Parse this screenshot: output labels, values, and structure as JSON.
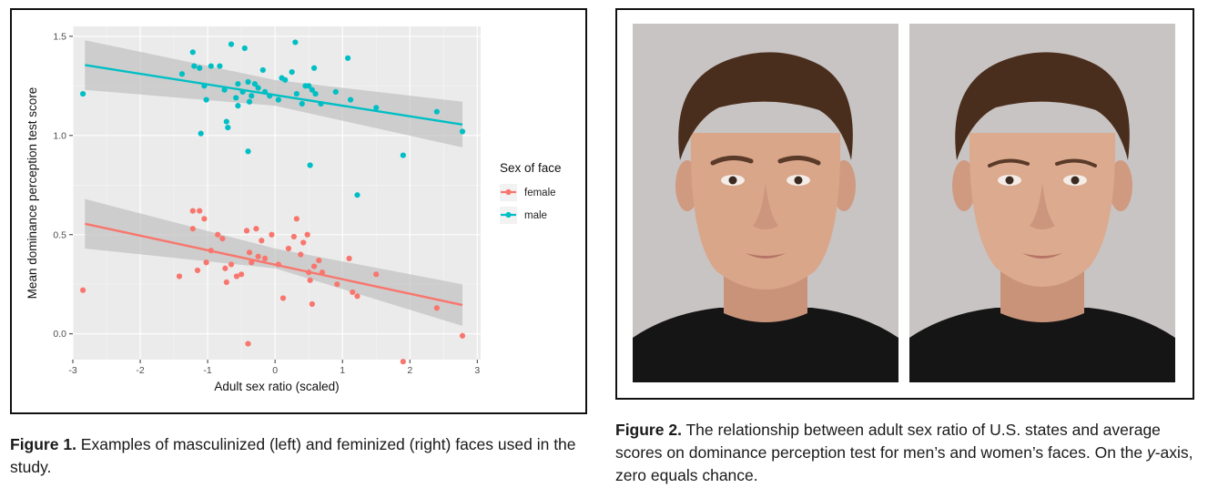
{
  "figure1_caption": {
    "label": "Figure 1.",
    "text": " Examples of masculinized (left) and feminized (right) faces used in the study."
  },
  "figure2_caption": {
    "label": "Figure 2.",
    "text_before": " The relationship between adult sex ratio of U.S. states and average scores on dominance perception test for men’s and women’s faces. On the ",
    "italic": "y",
    "text_after": "-axis, zero equals chance."
  },
  "chart_data": {
    "type": "scatter",
    "title": "",
    "xlabel": "Adult sex ratio (scaled)",
    "ylabel": "Mean dominance perception test score",
    "xlim": [
      -3.0,
      3.05
    ],
    "ylim": [
      -0.13,
      1.55
    ],
    "x_ticks": [
      "-3",
      "-2",
      "-1",
      "0",
      "1",
      "2",
      "3"
    ],
    "y_ticks": [
      "0.0",
      "0.5",
      "1.0",
      "1.5"
    ],
    "x_tick_values": [
      -3,
      -2,
      -1,
      0,
      1,
      2,
      3
    ],
    "y_tick_values": [
      0.0,
      0.5,
      1.0,
      1.5
    ],
    "grid": true,
    "legend": {
      "title": "Sex of face",
      "position": "right"
    },
    "colors": {
      "female": "#F8766D",
      "male": "#00BFC4",
      "panel_bg": "#EBEBEB",
      "ribbon": "#BDBDBD"
    },
    "series": [
      {
        "name": "female",
        "color": "#F8766D",
        "fit": {
          "x": [
            -2.82,
            2.78
          ],
          "y": [
            0.555,
            0.145
          ]
        },
        "ribbon": {
          "x": [
            -2.82,
            0.0,
            2.78
          ],
          "upper": [
            0.68,
            0.43,
            0.25
          ],
          "lower": [
            0.43,
            0.33,
            0.04
          ]
        },
        "points": [
          [
            -2.85,
            0.22
          ],
          [
            -1.42,
            0.29
          ],
          [
            -1.22,
            0.62
          ],
          [
            -1.22,
            0.53
          ],
          [
            -1.12,
            0.62
          ],
          [
            -1.05,
            0.58
          ],
          [
            -1.15,
            0.32
          ],
          [
            -1.02,
            0.36
          ],
          [
            -0.95,
            0.42
          ],
          [
            -0.85,
            0.5
          ],
          [
            -0.78,
            0.48
          ],
          [
            -0.74,
            0.33
          ],
          [
            -0.72,
            0.26
          ],
          [
            -0.65,
            0.35
          ],
          [
            -0.57,
            0.29
          ],
          [
            -0.5,
            0.3
          ],
          [
            -0.42,
            0.52
          ],
          [
            -0.38,
            0.41
          ],
          [
            -0.35,
            0.36
          ],
          [
            -0.28,
            0.53
          ],
          [
            -0.25,
            0.39
          ],
          [
            -0.2,
            0.47
          ],
          [
            -0.15,
            0.38
          ],
          [
            -0.05,
            0.5
          ],
          [
            0.05,
            0.35
          ],
          [
            0.12,
            0.18
          ],
          [
            0.2,
            0.43
          ],
          [
            0.28,
            0.49
          ],
          [
            0.32,
            0.58
          ],
          [
            0.38,
            0.4
          ],
          [
            0.42,
            0.46
          ],
          [
            0.48,
            0.5
          ],
          [
            0.5,
            0.31
          ],
          [
            0.52,
            0.27
          ],
          [
            0.55,
            0.15
          ],
          [
            0.58,
            0.34
          ],
          [
            0.65,
            0.37
          ],
          [
            0.7,
            0.31
          ],
          [
            0.92,
            0.25
          ],
          [
            1.1,
            0.38
          ],
          [
            1.15,
            0.21
          ],
          [
            1.22,
            0.19
          ],
          [
            1.5,
            0.3
          ],
          [
            1.9,
            -0.14
          ],
          [
            -0.4,
            -0.05
          ],
          [
            2.4,
            0.13
          ],
          [
            2.78,
            -0.01
          ]
        ]
      },
      {
        "name": "male",
        "color": "#00BFC4",
        "fit": {
          "x": [
            -2.82,
            2.78
          ],
          "y": [
            1.355,
            1.055
          ]
        },
        "ribbon": {
          "x": [
            -2.82,
            0.0,
            2.78
          ],
          "upper": [
            1.48,
            1.28,
            1.17
          ],
          "lower": [
            1.23,
            1.15,
            0.94
          ]
        },
        "points": [
          [
            -2.85,
            1.21
          ],
          [
            -1.38,
            1.31
          ],
          [
            -1.22,
            1.42
          ],
          [
            -1.2,
            1.35
          ],
          [
            -1.12,
            1.34
          ],
          [
            -1.05,
            1.25
          ],
          [
            -1.02,
            1.18
          ],
          [
            -1.1,
            1.01
          ],
          [
            -0.95,
            1.35
          ],
          [
            -0.82,
            1.35
          ],
          [
            -0.75,
            1.23
          ],
          [
            -0.72,
            1.07
          ],
          [
            -0.7,
            1.04
          ],
          [
            -0.65,
            1.46
          ],
          [
            -0.58,
            1.19
          ],
          [
            -0.55,
            1.26
          ],
          [
            -0.48,
            1.22
          ],
          [
            -0.45,
            1.44
          ],
          [
            -0.4,
            1.27
          ],
          [
            -0.38,
            1.17
          ],
          [
            -0.35,
            1.2
          ],
          [
            -0.3,
            1.26
          ],
          [
            -0.25,
            1.24
          ],
          [
            -0.18,
            1.33
          ],
          [
            -0.15,
            1.22
          ],
          [
            -0.08,
            1.2
          ],
          [
            0.05,
            1.18
          ],
          [
            0.1,
            1.29
          ],
          [
            0.15,
            1.28
          ],
          [
            0.25,
            1.32
          ],
          [
            0.3,
            1.47
          ],
          [
            0.32,
            1.21
          ],
          [
            0.4,
            1.16
          ],
          [
            0.45,
            1.25
          ],
          [
            0.5,
            1.25
          ],
          [
            0.52,
            0.85
          ],
          [
            0.55,
            1.23
          ],
          [
            0.58,
            1.34
          ],
          [
            0.6,
            1.21
          ],
          [
            0.68,
            1.16
          ],
          [
            0.9,
            1.22
          ],
          [
            1.08,
            1.39
          ],
          [
            1.12,
            1.18
          ],
          [
            1.22,
            0.7
          ],
          [
            1.5,
            1.14
          ],
          [
            1.9,
            0.9
          ],
          [
            2.4,
            1.12
          ],
          [
            2.78,
            1.02
          ],
          [
            -0.4,
            0.92
          ],
          [
            -0.55,
            1.15
          ]
        ]
      }
    ]
  },
  "figure2": {
    "images": [
      {
        "name": "masculinized-face",
        "hair": "#4a2e1d",
        "skin": "#d9a68a",
        "shirt": "#151515",
        "bg": "#c8c4c3"
      },
      {
        "name": "feminized-face",
        "hair": "#4a2e1d",
        "skin": "#dcaa8e",
        "shirt": "#151515",
        "bg": "#c8c4c3"
      }
    ]
  }
}
